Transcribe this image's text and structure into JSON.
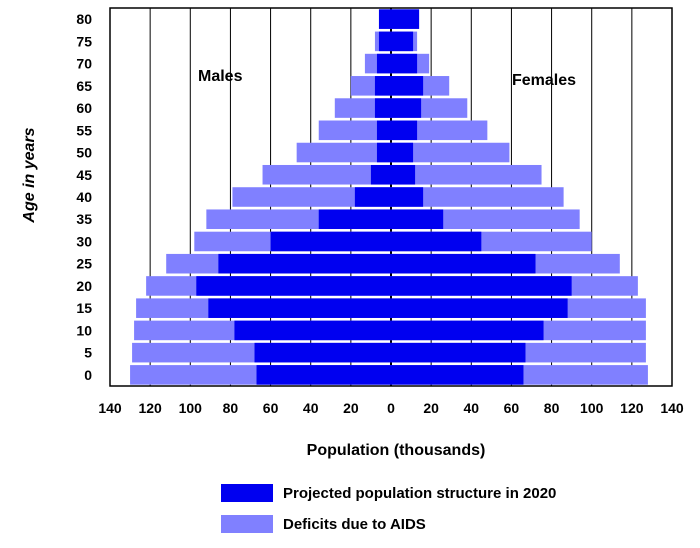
{
  "chart_data": {
    "type": "bar",
    "orientation": "horizontal",
    "layout": "population-pyramid",
    "categories": [
      "0",
      "5",
      "10",
      "15",
      "20",
      "25",
      "30",
      "35",
      "40",
      "45",
      "50",
      "55",
      "60",
      "65",
      "70",
      "75",
      "80"
    ],
    "series": [
      {
        "name": "Projected population structure in 2020",
        "color": "#0000f0",
        "males": [
          67,
          68,
          78,
          91,
          97,
          86,
          60,
          36,
          18,
          10,
          7,
          7,
          8,
          8,
          7,
          6,
          6
        ],
        "females": [
          66,
          67,
          76,
          88,
          90,
          72,
          45,
          26,
          16,
          12,
          11,
          13,
          15,
          16,
          13,
          11,
          14
        ]
      },
      {
        "name": "Deficits due to AIDS",
        "color": "#8080ff",
        "males": [
          130,
          129,
          128,
          127,
          122,
          112,
          98,
          92,
          79,
          64,
          47,
          36,
          28,
          20,
          13,
          8,
          6
        ],
        "females": [
          128,
          127,
          127,
          127,
          123,
          114,
          100,
          94,
          86,
          75,
          59,
          48,
          38,
          29,
          19,
          13,
          14
        ]
      }
    ],
    "side_labels": {
      "left": "Males",
      "right": "Females"
    },
    "x_ticks": [
      "140",
      "120",
      "100",
      "80",
      "60",
      "40",
      "20",
      "0",
      "20",
      "40",
      "60",
      "80",
      "100",
      "120",
      "140"
    ],
    "xlim": [
      -140,
      140
    ],
    "xlabel": "Population (thousands)",
    "ylabel": "Age in years",
    "grid": "vertical"
  }
}
